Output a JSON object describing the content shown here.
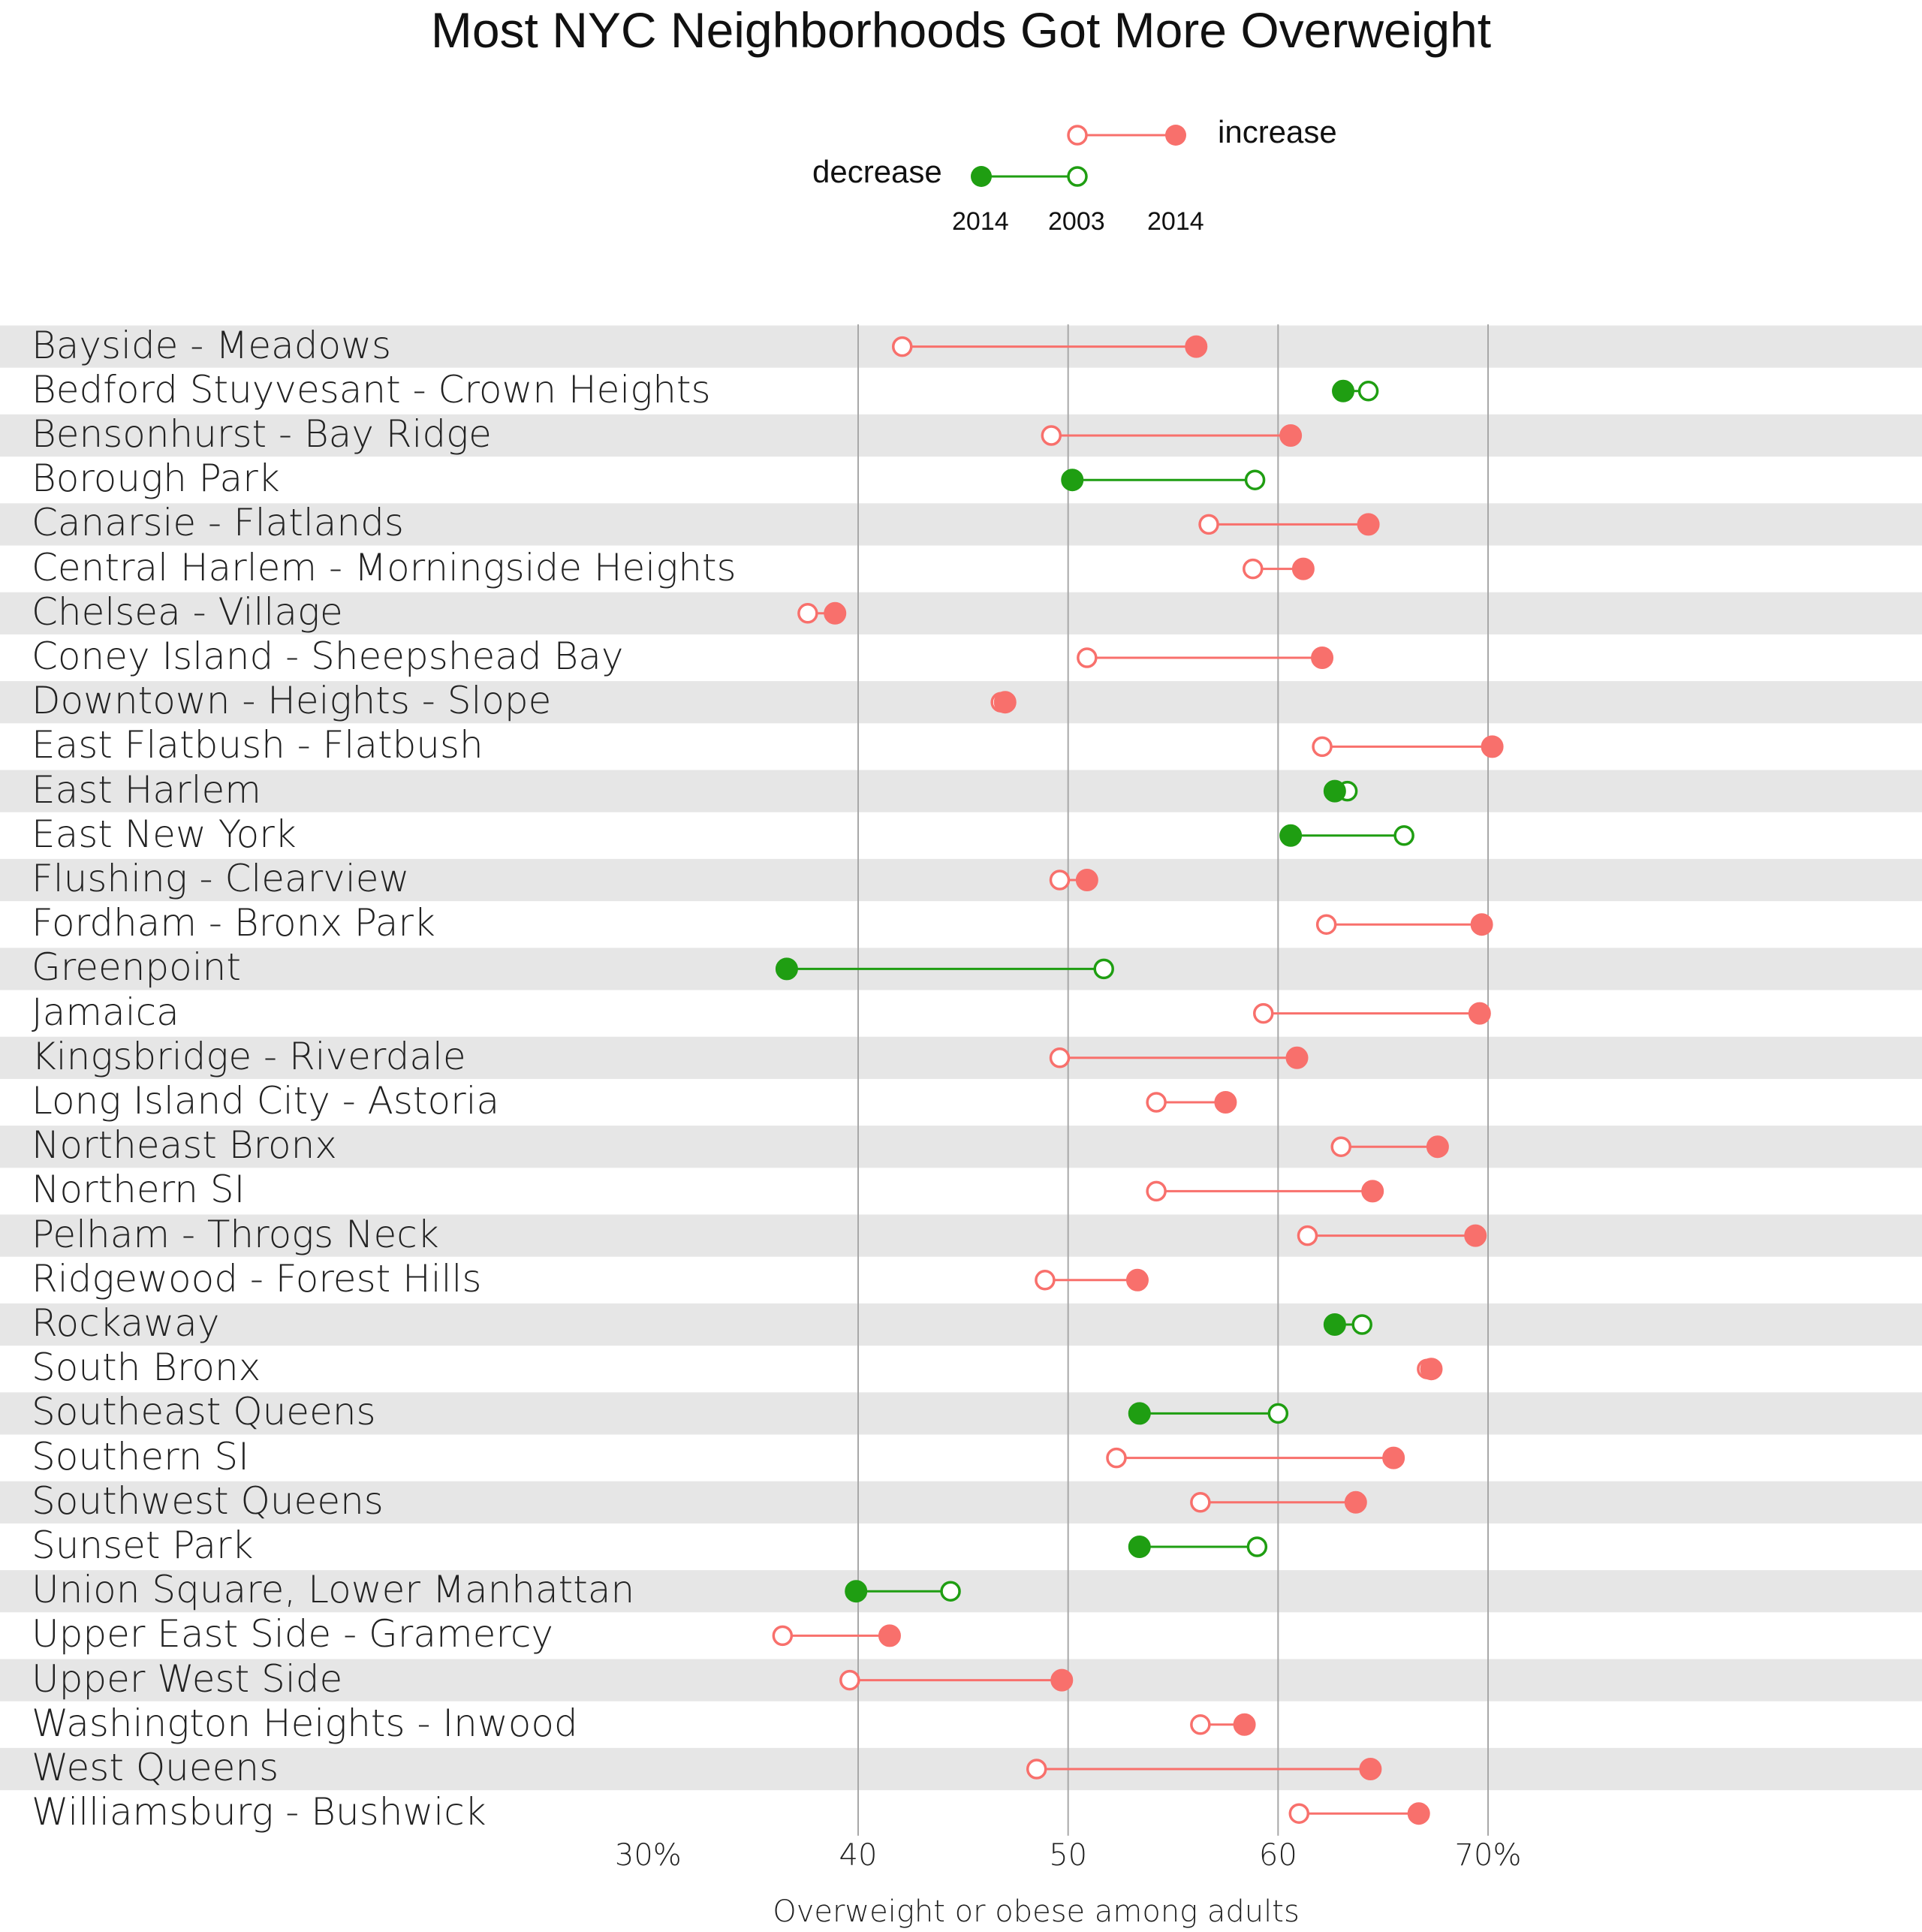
{
  "chart_data": {
    "type": "dumbbell",
    "title": "Most NYC Neighborhoods Got More Overweight",
    "xlabel": "Overweight or obese among adults",
    "xlim": [
      30,
      72
    ],
    "x_ticks": [
      30,
      40,
      50,
      60,
      70
    ],
    "x_tick_labels": [
      "30%",
      "40",
      "50",
      "60",
      "70%"
    ],
    "grid": true,
    "legend": {
      "placement": "top-center",
      "increase_label": "increase",
      "decrease_label": "decrease",
      "year_2003": "2003",
      "year_2014": "2014",
      "increase_color": "#f8706c",
      "decrease_color": "#1f9e12"
    },
    "rows": [
      {
        "name": "Bayside - Meadows",
        "y2003": 42.1,
        "y2014": 56.1
      },
      {
        "name": "Bedford Stuyvesant - Crown Heights",
        "y2003": 64.3,
        "y2014": 63.1
      },
      {
        "name": "Bensonhurst - Bay Ridge",
        "y2003": 49.2,
        "y2014": 60.6
      },
      {
        "name": "Borough Park",
        "y2003": 58.9,
        "y2014": 50.2
      },
      {
        "name": "Canarsie - Flatlands",
        "y2003": 56.7,
        "y2014": 64.3
      },
      {
        "name": "Central Harlem - Morningside Heights",
        "y2003": 58.8,
        "y2014": 61.2
      },
      {
        "name": "Chelsea - Village",
        "y2003": 37.6,
        "y2014": 38.9
      },
      {
        "name": "Coney Island - Sheepshead Bay",
        "y2003": 50.9,
        "y2014": 62.1
      },
      {
        "name": "Downtown - Heights - Slope",
        "y2003": 46.8,
        "y2014": 47.0
      },
      {
        "name": "East Flatbush - Flatbush",
        "y2003": 62.1,
        "y2014": 70.2
      },
      {
        "name": "East Harlem",
        "y2003": 63.3,
        "y2014": 62.7
      },
      {
        "name": "East New York",
        "y2003": 66.0,
        "y2014": 60.6
      },
      {
        "name": "Flushing - Clearview",
        "y2003": 49.6,
        "y2014": 50.9
      },
      {
        "name": "Fordham - Bronx Park",
        "y2003": 62.3,
        "y2014": 69.7
      },
      {
        "name": "Greenpoint",
        "y2003": 51.7,
        "y2014": 36.6
      },
      {
        "name": "Jamaica",
        "y2003": 59.3,
        "y2014": 69.6
      },
      {
        "name": "Kingsbridge - Riverdale",
        "y2003": 49.6,
        "y2014": 60.9
      },
      {
        "name": "Long Island City - Astoria",
        "y2003": 54.2,
        "y2014": 57.5
      },
      {
        "name": "Northeast Bronx",
        "y2003": 63.0,
        "y2014": 67.6
      },
      {
        "name": "Northern SI",
        "y2003": 54.2,
        "y2014": 64.5
      },
      {
        "name": "Pelham - Throgs Neck",
        "y2003": 61.4,
        "y2014": 69.4
      },
      {
        "name": "Ridgewood - Forest Hills",
        "y2003": 48.9,
        "y2014": 53.3
      },
      {
        "name": "Rockaway",
        "y2003": 64.0,
        "y2014": 62.7
      },
      {
        "name": "South Bronx",
        "y2003": 67.1,
        "y2014": 67.3
      },
      {
        "name": "Southeast Queens",
        "y2003": 60.0,
        "y2014": 53.4
      },
      {
        "name": "Southern SI",
        "y2003": 52.3,
        "y2014": 65.5
      },
      {
        "name": "Southwest Queens",
        "y2003": 56.3,
        "y2014": 63.7
      },
      {
        "name": "Sunset Park",
        "y2003": 59.0,
        "y2014": 53.4
      },
      {
        "name": "Union Square, Lower Manhattan",
        "y2003": 44.4,
        "y2014": 39.9
      },
      {
        "name": "Upper East Side - Gramercy",
        "y2003": 36.4,
        "y2014": 41.5
      },
      {
        "name": "Upper West Side",
        "y2003": 39.6,
        "y2014": 49.7
      },
      {
        "name": "Washington Heights - Inwood",
        "y2003": 56.3,
        "y2014": 58.4
      },
      {
        "name": "West Queens",
        "y2003": 48.5,
        "y2014": 64.4
      },
      {
        "name": "Williamsburg - Bushwick",
        "y2003": 61.0,
        "y2014": 66.7
      }
    ]
  }
}
